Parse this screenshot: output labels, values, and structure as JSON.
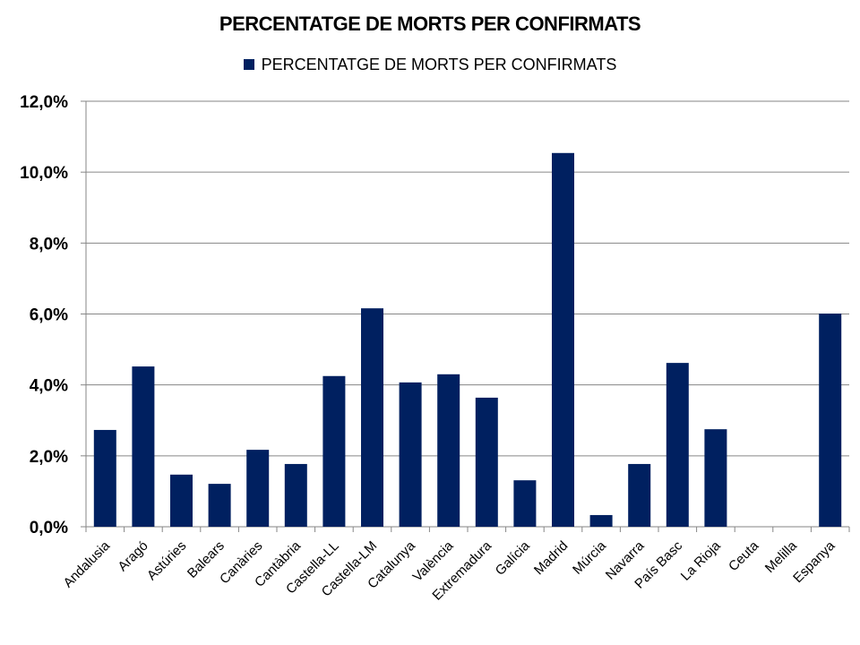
{
  "chart_data": {
    "type": "bar",
    "title": "PERCENTATGE DE MORTS PER CONFIRMATS",
    "legend": {
      "label": "PERCENTATGE DE MORTS PER CONFIRMATS",
      "position": "top"
    },
    "series_color": "#002060",
    "categories": [
      "Andalusia",
      "Aragó",
      "Astúries",
      "Balears",
      "Canàries",
      "Cantàbria",
      "Castella-LL",
      "Castella-LM",
      "Catalunya",
      "València",
      "Extremadura",
      "Galícia",
      "Madrid",
      "Múrcia",
      "Navarra",
      "País Basc",
      "La Rioja",
      "Ceuta",
      "Melilla",
      "Espanya"
    ],
    "values": [
      2.73,
      4.52,
      1.47,
      1.21,
      2.17,
      1.77,
      4.25,
      6.16,
      4.07,
      4.3,
      3.64,
      1.31,
      10.54,
      0.33,
      1.77,
      4.62,
      2.75,
      0,
      0,
      6.01
    ],
    "ylim": [
      0,
      12
    ],
    "yticks": [
      0,
      2,
      4,
      6,
      8,
      10,
      12
    ],
    "ytick_labels": [
      "0,0%",
      "2,0%",
      "4,0%",
      "6,0%",
      "8,0%",
      "10,0%",
      "12,0%"
    ],
    "grid": true,
    "xlabel": "",
    "ylabel": ""
  }
}
